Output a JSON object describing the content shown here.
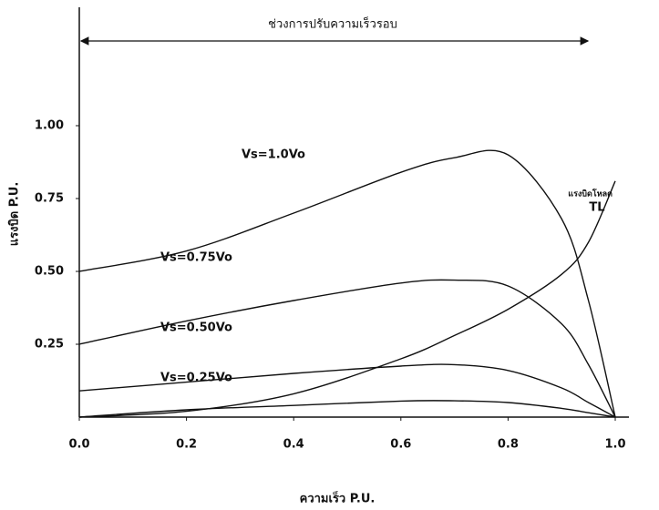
{
  "chart_data": {
    "type": "line",
    "title": "ช่วงการปรับความเร็วรอบ",
    "x_label": "ความเร็ว P.U.",
    "y_label": "แรงบิด P.U.",
    "x": [
      0,
      0.2,
      0.4,
      0.6,
      0.7,
      0.8,
      0.9,
      0.95,
      1.0
    ],
    "series": [
      {
        "name": "Vs=1.0Vo",
        "color": "#111111",
        "values": [
          0.5,
          0.57,
          0.7,
          0.84,
          0.89,
          0.9,
          0.68,
          0.4,
          0
        ]
      },
      {
        "name": "Vs=0.75Vo",
        "color": "#111111",
        "values": [
          0.25,
          0.33,
          0.4,
          0.46,
          0.47,
          0.45,
          0.32,
          0.18,
          0
        ]
      },
      {
        "name": "Vs=0.50Vo",
        "color": "#111111",
        "values": [
          0.09,
          0.12,
          0.15,
          0.175,
          0.18,
          0.16,
          0.1,
          0.05,
          0
        ]
      },
      {
        "name": "Vs=0.25Vo",
        "color": "#111111",
        "values": [
          0,
          0.025,
          0.04,
          0.055,
          0.056,
          0.05,
          0.03,
          0.015,
          0
        ]
      },
      {
        "name": "แรงบิดโหลด",
        "color": "#111111",
        "values": [
          0,
          0.02,
          0.08,
          0.2,
          0.28,
          0.37,
          0.49,
          0.6,
          0.81
        ]
      }
    ],
    "load_label": "TL",
    "xlim": [
      0,
      1.0
    ],
    "ylim": [
      0,
      1.4
    ],
    "xticks": [
      {
        "value": 0,
        "label": "0.0"
      },
      0.2,
      0.4,
      0.6,
      0.8,
      {
        "value": 1.0,
        "label": "1.0"
      }
    ],
    "yticks": [
      0.25,
      {
        "value": 0.5,
        "label": "0.50"
      },
      0.75,
      {
        "value": 1.0,
        "label": "1.00"
      }
    ],
    "grid": false
  }
}
